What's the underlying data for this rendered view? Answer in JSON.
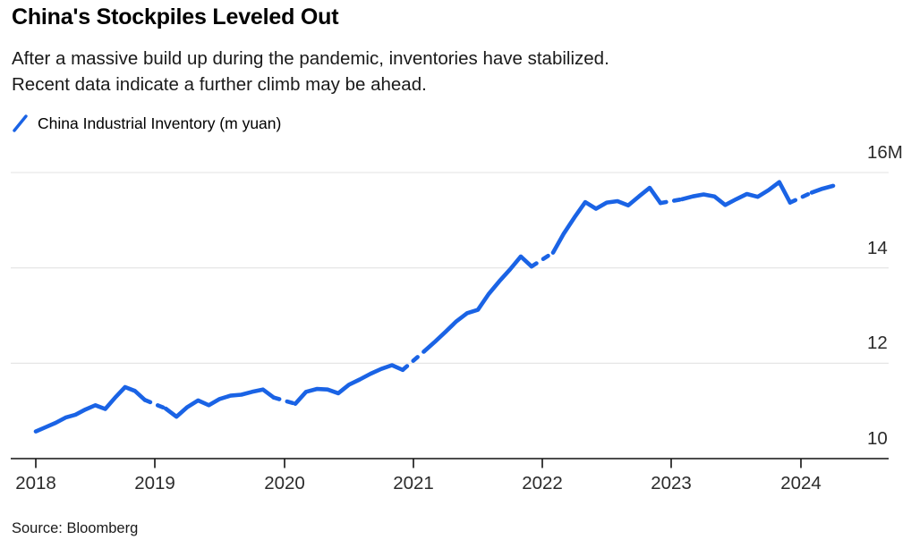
{
  "header": {
    "title": "China's Stockpiles Leveled Out",
    "subtitle_line1": "After a massive build up during the pandemic, inventories have stabilized.",
    "subtitle_line2": "Recent data indicate a further climb may be ahead."
  },
  "legend": {
    "label": "China Industrial Inventory (m yuan)"
  },
  "footer": {
    "source": "Source: Bloomberg"
  },
  "colors": {
    "line_blue": "#1a63e5",
    "gridline": "#e3e3e3",
    "axis": "#111111",
    "tick_text": "#2b2b2b"
  },
  "chart_data": {
    "type": "line",
    "title": "China's Stockpiles Leveled Out",
    "subtitle": "After a massive build up during the pandemic, inventories have stabilized. Recent data indicate a further climb may be ahead.",
    "xlabel": "",
    "ylabel": "China Industrial Inventory (m yuan)",
    "ylim": [
      10,
      16
    ],
    "grid": "horizontal",
    "legend_position": "top-left",
    "gap_style": "dashed",
    "y_ticks": [
      {
        "value": 16,
        "label": "16M"
      },
      {
        "value": 14,
        "label": "14"
      },
      {
        "value": 12,
        "label": "12"
      },
      {
        "value": 10,
        "label": "10"
      }
    ],
    "x_ticks": [
      {
        "value": 2018,
        "label": "2018"
      },
      {
        "value": 2019,
        "label": "2019"
      },
      {
        "value": 2020,
        "label": "2020"
      },
      {
        "value": 2021,
        "label": "2021"
      },
      {
        "value": 2022,
        "label": "2022"
      },
      {
        "value": 2023,
        "label": "2023"
      },
      {
        "value": 2024,
        "label": "2024"
      }
    ],
    "series": [
      {
        "name": "China Industrial Inventory (m yuan)",
        "color": "#1a63e5",
        "points": [
          [
            "2018-01",
            10.57
          ],
          [
            "2018-02",
            10.66
          ],
          [
            "2018-03",
            10.75
          ],
          [
            "2018-04",
            10.86
          ],
          [
            "2018-05",
            10.92
          ],
          [
            "2018-06",
            11.03
          ],
          [
            "2018-07",
            11.12
          ],
          [
            "2018-08",
            11.04
          ],
          [
            "2018-09",
            11.28
          ],
          [
            "2018-10",
            11.5
          ],
          [
            "2018-11",
            11.42
          ],
          [
            "2018-12",
            11.23
          ],
          [
            "2019-02",
            11.05
          ],
          [
            "2019-03",
            10.88
          ],
          [
            "2019-04",
            11.08
          ],
          [
            "2019-05",
            11.22
          ],
          [
            "2019-06",
            11.12
          ],
          [
            "2019-07",
            11.25
          ],
          [
            "2019-08",
            11.32
          ],
          [
            "2019-09",
            11.34
          ],
          [
            "2019-10",
            11.4
          ],
          [
            "2019-11",
            11.45
          ],
          [
            "2019-12",
            11.28
          ],
          [
            "2020-02",
            11.15
          ],
          [
            "2020-03",
            11.4
          ],
          [
            "2020-04",
            11.46
          ],
          [
            "2020-05",
            11.45
          ],
          [
            "2020-06",
            11.37
          ],
          [
            "2020-07",
            11.55
          ],
          [
            "2020-08",
            11.66
          ],
          [
            "2020-09",
            11.78
          ],
          [
            "2020-10",
            11.88
          ],
          [
            "2020-11",
            11.96
          ],
          [
            "2020-12",
            11.86
          ],
          [
            "2021-02",
            12.25
          ],
          [
            "2021-03",
            12.45
          ],
          [
            "2021-04",
            12.66
          ],
          [
            "2021-05",
            12.88
          ],
          [
            "2021-06",
            13.05
          ],
          [
            "2021-07",
            13.12
          ],
          [
            "2021-08",
            13.45
          ],
          [
            "2021-09",
            13.72
          ],
          [
            "2021-10",
            13.97
          ],
          [
            "2021-11",
            14.24
          ],
          [
            "2021-12",
            14.03
          ],
          [
            "2022-02",
            14.32
          ],
          [
            "2022-03",
            14.72
          ],
          [
            "2022-04",
            15.06
          ],
          [
            "2022-05",
            15.38
          ],
          [
            "2022-06",
            15.24
          ],
          [
            "2022-07",
            15.37
          ],
          [
            "2022-08",
            15.4
          ],
          [
            "2022-09",
            15.31
          ],
          [
            "2022-10",
            15.5
          ],
          [
            "2022-11",
            15.68
          ],
          [
            "2022-12",
            15.36
          ],
          [
            "2023-02",
            15.44
          ],
          [
            "2023-03",
            15.5
          ],
          [
            "2023-04",
            15.54
          ],
          [
            "2023-05",
            15.5
          ],
          [
            "2023-06",
            15.32
          ],
          [
            "2023-07",
            15.44
          ],
          [
            "2023-08",
            15.55
          ],
          [
            "2023-09",
            15.49
          ],
          [
            "2023-10",
            15.63
          ],
          [
            "2023-11",
            15.8
          ],
          [
            "2023-12",
            15.37
          ],
          [
            "2024-02",
            15.58
          ],
          [
            "2024-03",
            15.66
          ],
          [
            "2024-04",
            15.72
          ]
        ]
      }
    ],
    "source": "Source: Bloomberg"
  }
}
